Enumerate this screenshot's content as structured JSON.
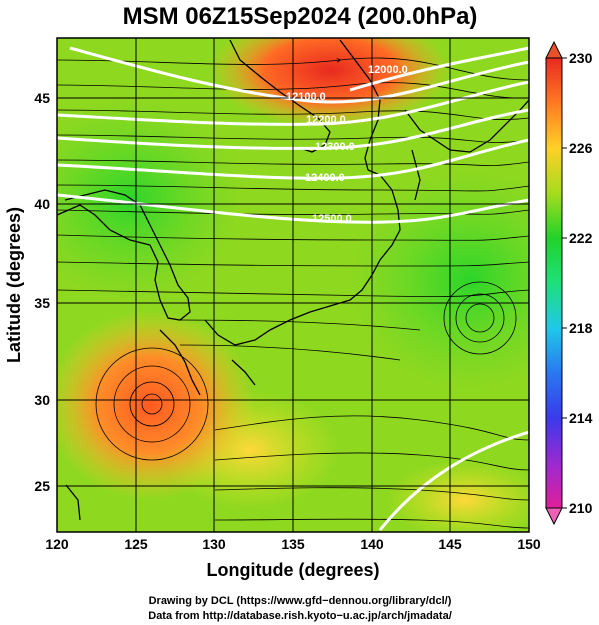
{
  "title": "MSM 06Z15Sep2024 (200.0hPa)",
  "xlabel": "Longitude (degrees)",
  "ylabel": "Latitude  (degrees)",
  "credits": {
    "line1": "Drawing by DCL (https://www.gfd−dennou.org/library/dcl/)",
    "line2": "Data from http://database.rish.kyoto−u.ac.jp/arch/jmadata/"
  },
  "x_ticks": [
    "120",
    "125",
    "130",
    "135",
    "140",
    "145",
    "150"
  ],
  "y_ticks": [
    "25",
    "30",
    "35",
    "40",
    "45"
  ],
  "colorbar": {
    "ticks": [
      "230",
      "226",
      "222",
      "218",
      "214",
      "210"
    ],
    "range": [
      210,
      230
    ],
    "colors": [
      "#e0209a",
      "#9a2ad0",
      "#3a3aea",
      "#2a78f0",
      "#20c8e8",
      "#1ee07a",
      "#22d22a",
      "#78d81e",
      "#c8e01e",
      "#ffd028",
      "#ff9a28",
      "#ff4a20",
      "#e82a20"
    ]
  },
  "contours": {
    "color": "#ffffff",
    "labels": [
      "12000.0",
      "12100.0",
      "12200.0",
      "12300.0",
      "12400.0",
      "12500.0"
    ]
  },
  "extent": {
    "lon": [
      120,
      150
    ],
    "lat": [
      22.8,
      48
    ]
  }
}
